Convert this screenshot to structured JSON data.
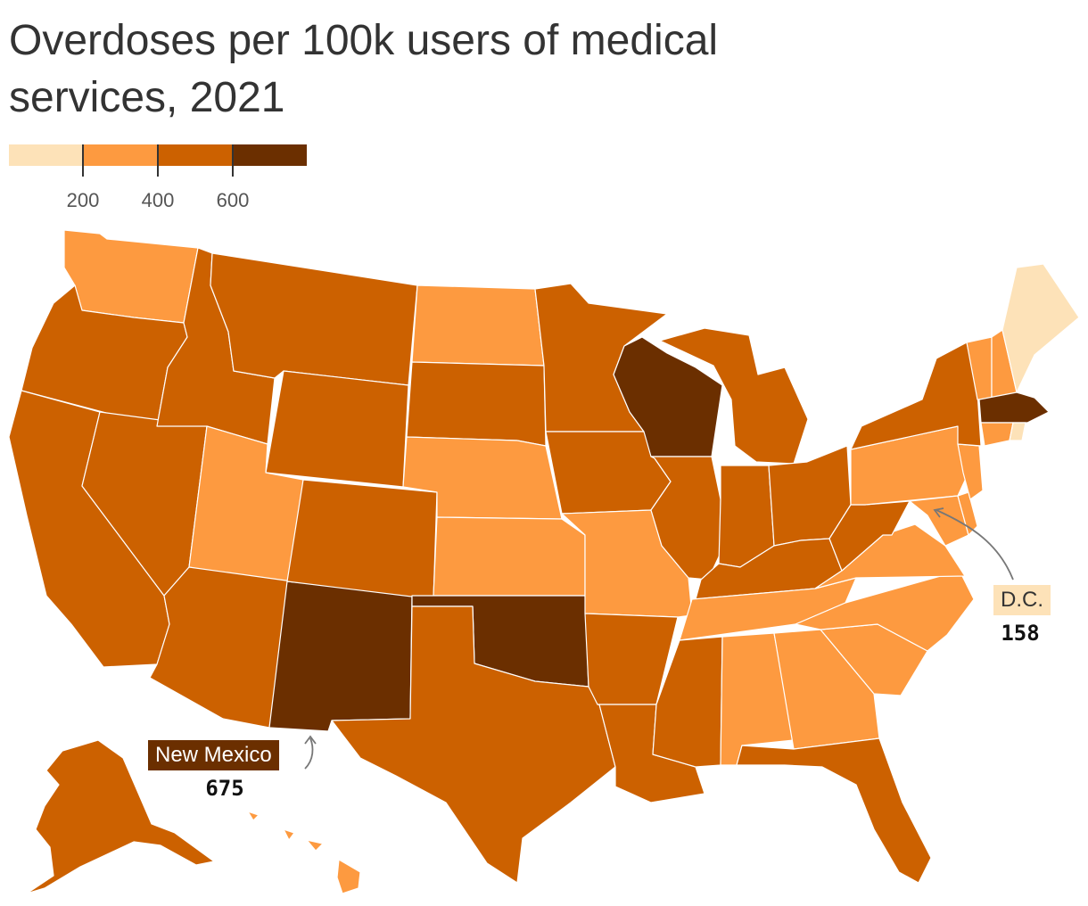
{
  "title": "Overdoses per 100k users of medical services, 2021",
  "legend": {
    "colors": [
      "#fde2b8",
      "#fd9a40",
      "#cc6100",
      "#6b2f00"
    ],
    "ticks": [
      "200",
      "400",
      "600"
    ]
  },
  "callouts": {
    "new_mexico": {
      "label": "New Mexico",
      "value": "675"
    },
    "dc": {
      "label": "D.C.",
      "value": "158"
    }
  },
  "states": {
    "WA": "orange",
    "OR": "dark-orange",
    "CA": "dark-orange",
    "NV": "dark-orange",
    "ID": "dark-orange",
    "MT": "dark-orange",
    "WY": "dark-orange",
    "UT": "orange",
    "AZ": "dark-orange",
    "NM": "brown",
    "CO": "dark-orange",
    "ND": "orange",
    "SD": "dark-orange",
    "NE": "orange",
    "KS": "orange",
    "OK": "brown",
    "TX": "dark-orange",
    "MN": "dark-orange",
    "IA": "dark-orange",
    "MO": "orange",
    "AR": "dark-orange",
    "LA": "dark-orange",
    "WI": "brown",
    "IL": "dark-orange",
    "MI": "dark-orange",
    "IN": "dark-orange",
    "OH": "dark-orange",
    "KY": "dark-orange",
    "TN": "orange",
    "MS": "dark-orange",
    "AL": "orange",
    "GA": "orange",
    "FL": "dark-orange",
    "SC": "orange",
    "NC": "orange",
    "VA": "orange",
    "WV": "dark-orange",
    "MD": "orange",
    "DE": "orange",
    "PA": "orange",
    "NJ": "orange",
    "NY": "dark-orange",
    "CT": "orange",
    "RI": "light",
    "MA": "brown",
    "VT": "orange",
    "NH": "orange",
    "ME": "light",
    "AK": "dark-orange",
    "HI": "orange"
  }
}
